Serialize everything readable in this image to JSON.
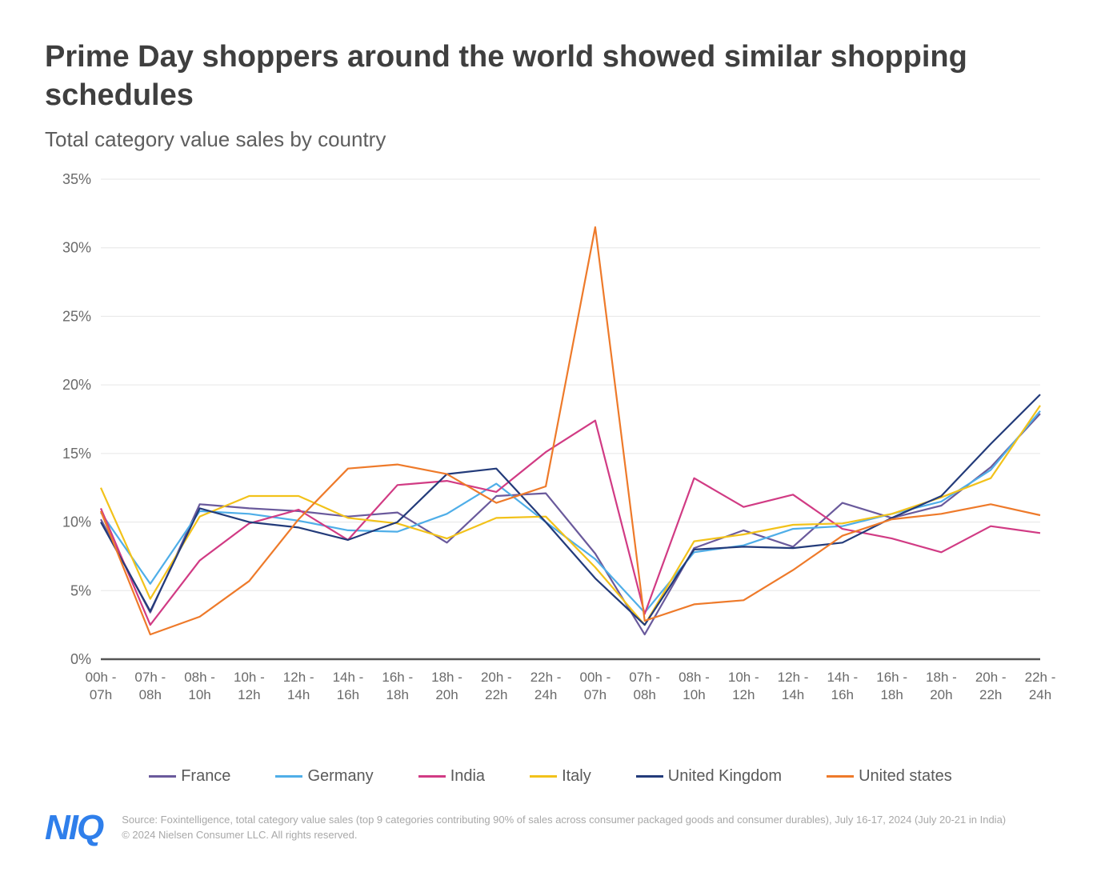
{
  "title": "Prime Day shoppers around the world showed similar shopping schedules",
  "subtitle": "Total category value sales by country",
  "logo_text": "NIQ",
  "source_line1": "Source: Foxintelligence, total category value sales (top 9 categories contributing 90% of sales across consumer packaged goods and consumer durables), July 16-17, 2024 (July 20-21 in India)",
  "source_line2": "© 2024 Nielsen Consumer LLC. All rights reserved.",
  "chart": {
    "type": "line",
    "background_color": "#ffffff",
    "grid_color": "#e6e6e6",
    "axis_color": "#555555",
    "axis_font_color": "#6a6a6a",
    "axis_fontsize": 18,
    "xlabel_fontsize": 17,
    "line_width": 2.2,
    "y": {
      "min": 0,
      "max": 35,
      "tick_step": 5,
      "tick_labels": [
        "0%",
        "5%",
        "10%",
        "15%",
        "20%",
        "25%",
        "30%",
        "35%"
      ],
      "label_format": "{v}%"
    },
    "x_labels": [
      "00h - 07h",
      "07h - 08h",
      "08h - 10h",
      "10h - 12h",
      "12h - 14h",
      "14h - 16h",
      "16h - 18h",
      "18h - 20h",
      "20h - 22h",
      "22h - 24h",
      "00h - 07h",
      "07h - 08h",
      "08h - 10h",
      "10h - 12h",
      "12h - 14h",
      "14h - 16h",
      "16h - 18h",
      "18h - 20h",
      "20h - 22h",
      "22h - 24h"
    ],
    "series": [
      {
        "name": "France",
        "color": "#6a5a9c",
        "values": [
          10.2,
          3.4,
          11.3,
          11.0,
          10.8,
          10.4,
          10.7,
          8.5,
          11.9,
          12.1,
          7.7,
          1.8,
          8.1,
          9.4,
          8.2,
          11.4,
          10.3,
          11.2,
          14.0,
          17.9
        ]
      },
      {
        "name": "Germany",
        "color": "#4faee8",
        "values": [
          10.7,
          5.5,
          10.8,
          10.6,
          10.1,
          9.4,
          9.3,
          10.6,
          12.8,
          10.0,
          7.3,
          3.4,
          7.8,
          8.3,
          9.5,
          9.7,
          10.6,
          11.5,
          13.8,
          18.1
        ]
      },
      {
        "name": "India",
        "color": "#d13b84",
        "values": [
          11.0,
          2.5,
          7.2,
          9.9,
          10.9,
          8.7,
          12.7,
          13.0,
          12.2,
          15.1,
          17.4,
          3.3,
          13.2,
          11.1,
          12.0,
          9.5,
          8.8,
          7.8,
          9.7,
          9.2
        ]
      },
      {
        "name": "Italy",
        "color": "#f2c21a",
        "values": [
          12.5,
          4.4,
          10.4,
          11.9,
          11.9,
          10.3,
          9.9,
          8.8,
          10.3,
          10.4,
          6.7,
          2.5,
          8.6,
          9.1,
          9.8,
          9.9,
          10.6,
          11.8,
          13.2,
          18.5
        ]
      },
      {
        "name": "United Kingdom",
        "color": "#233b7a",
        "values": [
          10.0,
          3.5,
          11.0,
          10.0,
          9.6,
          8.7,
          10.0,
          13.5,
          13.9,
          10.0,
          5.9,
          2.5,
          8.0,
          8.2,
          8.1,
          8.5,
          10.3,
          11.9,
          15.7,
          19.3
        ]
      },
      {
        "name": "United states",
        "color": "#ee7a2a",
        "values": [
          10.8,
          1.8,
          3.1,
          5.7,
          10.2,
          13.9,
          14.2,
          13.5,
          11.4,
          12.6,
          31.5,
          2.8,
          4.0,
          4.3,
          6.5,
          9.0,
          10.2,
          10.6,
          11.3,
          10.5
        ]
      }
    ]
  }
}
